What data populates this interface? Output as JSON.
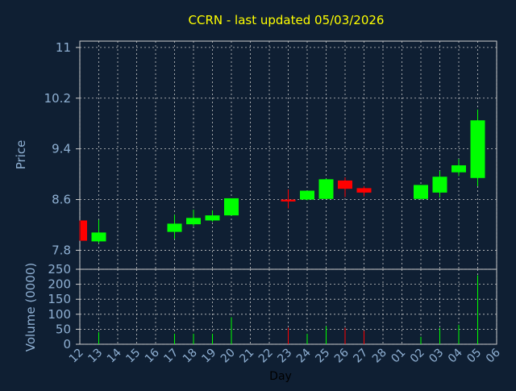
{
  "chart_data": {
    "type": "candlestick",
    "title": "CCRN - last updated 05/03/2026",
    "xlabel": "Day",
    "x_tick_labels": [
      "12",
      "13",
      "14",
      "15",
      "16",
      "17",
      "18",
      "19",
      "20",
      "21",
      "22",
      "23",
      "24",
      "25",
      "26",
      "27",
      "28",
      "01",
      "02",
      "03",
      "04",
      "05",
      "06"
    ],
    "price_panel": {
      "ylabel": "Price",
      "ylim": [
        7.5,
        11.1
      ],
      "yticks": [
        7.8,
        8.6,
        9.4,
        10.2,
        11
      ],
      "ytick_labels": [
        "7.8",
        "8.6",
        "9.4",
        "10.2",
        "11"
      ],
      "grid": true
    },
    "volume_panel": {
      "ylabel": "Volume (0000)",
      "ylim": [
        0,
        250
      ],
      "yticks": [
        0,
        50,
        100,
        150,
        200,
        250
      ],
      "ytick_labels": [
        "0",
        "50",
        "100",
        "150",
        "200",
        "250"
      ],
      "grid": true
    },
    "candles": [
      {
        "day": "12",
        "open": 8.27,
        "close": 7.95,
        "high": 8.27,
        "low": 7.95,
        "volume": 0
      },
      {
        "day": "13",
        "open": 7.94,
        "close": 8.08,
        "high": 8.28,
        "low": 7.91,
        "volume": 40
      },
      {
        "day": "17",
        "open": 8.09,
        "close": 8.22,
        "high": 8.36,
        "low": 7.98,
        "volume": 35
      },
      {
        "day": "18",
        "open": 8.21,
        "close": 8.31,
        "high": 8.44,
        "low": 8.18,
        "volume": 35
      },
      {
        "day": "19",
        "open": 8.27,
        "close": 8.35,
        "high": 8.43,
        "low": 8.25,
        "volume": 35
      },
      {
        "day": "20",
        "open": 8.35,
        "close": 8.62,
        "high": 8.62,
        "low": 8.35,
        "volume": 90
      },
      {
        "day": "23",
        "open": 8.6,
        "close": 8.57,
        "high": 8.76,
        "low": 8.46,
        "volume": 55
      },
      {
        "day": "24",
        "open": 8.6,
        "close": 8.74,
        "high": 8.74,
        "low": 8.59,
        "volume": 35
      },
      {
        "day": "25",
        "open": 8.61,
        "close": 8.92,
        "high": 8.93,
        "low": 8.61,
        "volume": 60
      },
      {
        "day": "26",
        "open": 8.9,
        "close": 8.77,
        "high": 8.95,
        "low": 8.64,
        "volume": 55
      },
      {
        "day": "27",
        "open": 8.78,
        "close": 8.71,
        "high": 8.81,
        "low": 8.65,
        "volume": 45
      },
      {
        "day": "02",
        "open": 8.61,
        "close": 8.83,
        "high": 8.83,
        "low": 8.61,
        "volume": 25
      },
      {
        "day": "03",
        "open": 8.71,
        "close": 8.96,
        "high": 9.05,
        "low": 8.63,
        "volume": 55
      },
      {
        "day": "04",
        "open": 9.03,
        "close": 9.14,
        "high": 9.24,
        "low": 8.97,
        "volume": 65
      },
      {
        "day": "05",
        "open": 8.94,
        "close": 9.85,
        "high": 10.02,
        "low": 8.81,
        "volume": 230
      }
    ],
    "colors": {
      "background": "#0f1f33",
      "up": "#00ff00",
      "down": "#ff0000",
      "axis_text": "#8fb0d3",
      "title": "#ffff00",
      "grid": "#c8c8c8",
      "frame": "#d0d0d0",
      "x_label": "#000000"
    }
  }
}
